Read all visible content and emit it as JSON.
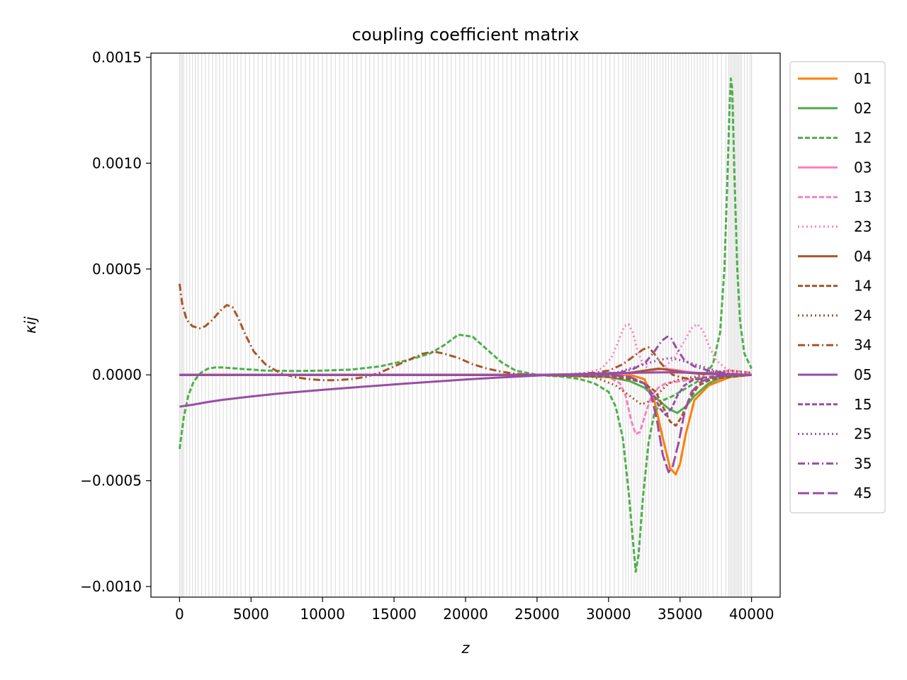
{
  "chart_data": {
    "type": "line",
    "title": "coupling coefficient matrix",
    "xlabel": "z",
    "ylabel": "κij",
    "xlim": [
      -2000,
      42000
    ],
    "ylim": [
      -0.00105,
      0.00152
    ],
    "x_ticks": [
      0,
      5000,
      10000,
      15000,
      20000,
      25000,
      30000,
      35000,
      40000
    ],
    "x_tick_labels": [
      "0",
      "5000",
      "10000",
      "15000",
      "20000",
      "25000",
      "30000",
      "35000",
      "40000"
    ],
    "y_ticks": [
      -0.001,
      -0.0005,
      0,
      0.0005,
      0.001,
      0.0015
    ],
    "y_tick_labels": [
      "−0.0010",
      "−0.0005",
      "0.0000",
      "0.0005",
      "0.0010",
      "0.0015"
    ],
    "legend_position": "outside-right",
    "grid": false,
    "background_vertical_lines": {
      "color": "#bdbdbd",
      "z": [
        0,
        100,
        200,
        300,
        500,
        700,
        900,
        1100,
        1300,
        1550,
        1800,
        2050,
        2300,
        2550,
        2800,
        3050,
        3300,
        3550,
        3800,
        4050,
        4300,
        4600,
        4900,
        5200,
        5500,
        5800,
        6100,
        6400,
        6700,
        7000,
        7300,
        7600,
        7900,
        8200,
        8500,
        8800,
        9100,
        9400,
        9700,
        10000,
        10300,
        10600,
        10900,
        11200,
        11500,
        11800,
        12100,
        12400,
        12700,
        13000,
        13300,
        13600,
        13900,
        14200,
        14500,
        14800,
        15100,
        15400,
        15700,
        16000,
        16300,
        16600,
        16900,
        17200,
        17500,
        17800,
        18100,
        18400,
        18700,
        19000,
        19300,
        19600,
        19900,
        20200,
        20500,
        20800,
        21100,
        21400,
        21700,
        22000,
        22300,
        22600,
        22900,
        23200,
        23500,
        23800,
        24100,
        24400,
        24700,
        25000,
        25300,
        25600,
        25900,
        26200,
        26500,
        26800,
        27100,
        27400,
        27700,
        28000,
        28300,
        28600,
        28900,
        29200,
        29500,
        29800,
        30100,
        30400,
        30700,
        31000,
        31200,
        31400,
        31600,
        31800,
        32000,
        32200,
        32400,
        32600,
        32800,
        33000,
        33200,
        33400,
        33600,
        33800,
        34000,
        34200,
        34400,
        34600,
        34800,
        35000,
        35200,
        35400,
        35600,
        35800,
        36000,
        36200,
        36400,
        36600,
        36800,
        37000,
        37300,
        37600,
        37900,
        38200,
        38400,
        38500,
        38600,
        38700,
        38800,
        38900,
        39000,
        39100,
        39200,
        39300,
        39500,
        39700,
        39900,
        40000
      ]
    },
    "series": [
      {
        "name": "01",
        "color": "#ff7f00",
        "dash": "solid",
        "x": [
          0,
          25000,
          30000,
          31500,
          32500,
          33200,
          33800,
          34300,
          34700,
          35000,
          35400,
          36000,
          37000,
          38500,
          40000
        ],
        "y": [
          0,
          0,
          0,
          0,
          -2e-05,
          -0.00012,
          -0.0003,
          -0.00044,
          -0.00047,
          -0.00042,
          -0.00028,
          -0.00012,
          -5e-05,
          -1e-05,
          0
        ]
      },
      {
        "name": "02",
        "color": "#4daf4a",
        "dash": "solid",
        "x": [
          0,
          25000,
          30000,
          31500,
          32500,
          33500,
          34200,
          34800,
          35400,
          36000,
          37000,
          38000,
          40000
        ],
        "y": [
          0,
          0,
          -1e-05,
          -3e-05,
          -6e-05,
          -0.00012,
          -0.00016,
          -0.00018,
          -0.00015,
          -0.0001,
          -4e-05,
          -1e-05,
          0
        ]
      },
      {
        "name": "12",
        "color": "#4daf4a",
        "dash": "dashed",
        "x": [
          0,
          100,
          300,
          600,
          1000,
          1500,
          2000,
          2500,
          3000,
          4000,
          5000,
          6000,
          8000,
          10000,
          12000,
          14000,
          16000,
          17500,
          18500,
          19500,
          20500,
          21500,
          22500,
          23500,
          25000,
          26000,
          27000,
          28000,
          29000,
          30000,
          30500,
          31000,
          31400,
          31700,
          31900,
          32100,
          32400,
          32800,
          33200,
          33800,
          34500,
          35500,
          36500,
          37300,
          37800,
          38100,
          38300,
          38450,
          38550,
          38650,
          38800,
          39000,
          39200,
          39500,
          40000
        ],
        "y": [
          -0.00035,
          -0.0003,
          -0.0002,
          -0.0001,
          -3e-05,
          1e-05,
          3e-05,
          3.5e-05,
          3.5e-05,
          3e-05,
          2.5e-05,
          2e-05,
          1.8e-05,
          2e-05,
          2.5e-05,
          4e-05,
          7e-05,
          0.0001,
          0.00014,
          0.00019,
          0.00018,
          0.00012,
          6e-05,
          2e-05,
          0,
          -5e-06,
          -1e-05,
          -2e-05,
          -4e-05,
          -8e-05,
          -0.00015,
          -0.0003,
          -0.00055,
          -0.00078,
          -0.00093,
          -0.00085,
          -0.00058,
          -0.00032,
          -0.00018,
          -0.00012,
          -0.0001,
          -6e-05,
          -2e-05,
          5e-05,
          0.0002,
          0.0005,
          0.0009,
          0.00125,
          0.0014,
          0.00135,
          0.00095,
          0.0005,
          0.00025,
          0.0001,
          3e-05
        ]
      },
      {
        "name": "03",
        "color": "#f781bf",
        "dash": "solid",
        "x": [
          0,
          25000,
          30000,
          31000,
          32000,
          33000,
          34000,
          35000,
          36000,
          37000,
          38000,
          40000
        ],
        "y": [
          0,
          0,
          0,
          5e-06,
          1e-05,
          2e-05,
          3e-05,
          2e-05,
          1e-05,
          5e-06,
          2e-06,
          0
        ]
      },
      {
        "name": "13",
        "color": "#f781bf",
        "dash": "dashed",
        "x": [
          0,
          25000,
          29000,
          30000,
          30800,
          31200,
          31600,
          31900,
          32200,
          32600,
          33000,
          33500,
          34000,
          35000,
          36000,
          37000,
          38500,
          40000
        ],
        "y": [
          0,
          0,
          0,
          -1e-05,
          -4e-05,
          -0.0001,
          -0.00022,
          -0.00028,
          -0.00027,
          -0.00018,
          -0.0001,
          -6e-05,
          -4e-05,
          -3e-05,
          -2e-05,
          1e-05,
          2e-05,
          1e-05
        ]
      },
      {
        "name": "23",
        "color": "#f781bf",
        "dash": "dotted",
        "x": [
          0,
          25000,
          27000,
          28500,
          29500,
          30200,
          30700,
          31100,
          31400,
          31700,
          32000,
          32400,
          33000,
          33800,
          34600,
          35300,
          35800,
          36200,
          36600,
          37000,
          37500,
          38200,
          39000,
          40000
        ],
        "y": [
          0,
          0,
          2e-06,
          1e-05,
          3e-05,
          8e-05,
          0.00016,
          0.00023,
          0.00024,
          0.0002,
          0.00012,
          5e-05,
          2e-05,
          3e-05,
          8e-05,
          0.00016,
          0.00022,
          0.00024,
          0.00021,
          0.00014,
          7e-05,
          3e-05,
          1e-05,
          0
        ]
      },
      {
        "name": "04",
        "color": "#a65628",
        "dash": "solid",
        "x": [
          0,
          25000,
          30000,
          31500,
          32500,
          33500,
          34000,
          34500,
          35500,
          36500,
          38000,
          40000
        ],
        "y": [
          0,
          0,
          5e-06,
          1e-05,
          2e-05,
          3e-05,
          2.5e-05,
          2e-05,
          1e-05,
          5e-06,
          2e-06,
          0
        ]
      },
      {
        "name": "14",
        "color": "#a65628",
        "dash": "dashed",
        "x": [
          0,
          25000,
          30000,
          31500,
          32500,
          33300,
          33800,
          34300,
          34700,
          35100,
          35600,
          36300,
          37200,
          38500,
          40000
        ],
        "y": [
          0,
          0,
          -1e-05,
          -2e-05,
          -4e-05,
          -8e-05,
          -0.00015,
          -0.00022,
          -0.00024,
          -0.0002,
          -0.00012,
          -5e-05,
          -2e-05,
          -1e-05,
          0
        ]
      },
      {
        "name": "24",
        "color": "#a65628",
        "dash": "dotted",
        "x": [
          0,
          25000,
          29000,
          30500,
          31500,
          32300,
          33000,
          33600,
          34200,
          35000,
          36000,
          37000,
          38500,
          40000
        ],
        "y": [
          0,
          0,
          -1e-05,
          -5e-05,
          -0.0001,
          -0.00014,
          -0.00012,
          -8e-05,
          -4e-05,
          -2e-05,
          -1e-05,
          1e-05,
          2e-05,
          1e-05
        ]
      },
      {
        "name": "34",
        "color": "#a65628",
        "dash": "dashdot",
        "x": [
          0,
          200,
          500,
          900,
          1400,
          1800,
          2300,
          2800,
          3300,
          3700,
          4100,
          4600,
          5200,
          6000,
          7000,
          8000,
          9000,
          10000,
          11000,
          12000,
          13000,
          14000,
          15000,
          16000,
          17000,
          17800,
          18500,
          19500,
          20500,
          21500,
          22500,
          23500,
          25000,
          26000,
          27000,
          28000,
          29000,
          30000,
          31000,
          31800,
          32400,
          32800,
          33200,
          33600,
          34000,
          34500,
          35000,
          35600,
          36500,
          37500,
          38500,
          40000
        ],
        "y": [
          0.00043,
          0.00033,
          0.00026,
          0.00023,
          0.00022,
          0.00023,
          0.00026,
          0.0003,
          0.00033,
          0.00032,
          0.00027,
          0.00019,
          0.00011,
          5e-05,
          1e-05,
          -1e-05,
          -2e-05,
          -2.5e-05,
          -2.5e-05,
          -2e-05,
          -1e-05,
          1e-05,
          4e-05,
          7e-05,
          0.0001,
          0.00011,
          0.0001,
          8e-05,
          5e-05,
          3e-05,
          1.5e-05,
          5e-06,
          0,
          -2e-06,
          0,
          5e-06,
          1e-05,
          2e-05,
          5e-05,
          9e-05,
          0.00012,
          0.00013,
          0.0001,
          6e-05,
          3e-05,
          0,
          -1e-05,
          -2e-05,
          -2e-05,
          -1e-05,
          0,
          0
        ]
      },
      {
        "name": "05",
        "color": "#984ea3",
        "dash": "solid",
        "x": [
          0,
          1000,
          2000,
          3000,
          4000,
          5000,
          6000,
          7000,
          8000,
          10000,
          12000,
          14000,
          16000,
          18000,
          20000,
          22000,
          24000,
          26000,
          28000,
          30000,
          32000,
          34000,
          36000,
          38000,
          40000
        ],
        "y": [
          -0.00015,
          -0.00014,
          -0.000128,
          -0.000118,
          -0.00011,
          -0.000102,
          -9.5e-05,
          -8.8e-05,
          -8.2e-05,
          -7.1e-05,
          -6e-05,
          -5e-05,
          -4e-05,
          -3.1e-05,
          -2.2e-05,
          -1.4e-05,
          -7e-06,
          0,
          4e-06,
          8e-06,
          1e-05,
          1.2e-05,
          1e-05,
          5e-06,
          0
        ]
      },
      {
        "name": "15",
        "color": "#984ea3",
        "dash": "dashed",
        "x": [
          0,
          25000,
          30000,
          31500,
          32500,
          33200,
          33600,
          34000,
          34400,
          34800,
          35300,
          36000,
          37000,
          38500,
          40000
        ],
        "y": [
          0,
          0,
          0,
          -1e-05,
          -4e-05,
          -0.0001,
          -0.00016,
          -0.00019,
          -0.00016,
          -0.0001,
          -5e-05,
          -2e-05,
          -1e-05,
          0,
          0
        ]
      },
      {
        "name": "25",
        "color": "#984ea3",
        "dash": "dotted",
        "x": [
          0,
          25000,
          29000,
          30500,
          31500,
          32500,
          33500,
          34300,
          35000,
          36000,
          37000,
          38000,
          39000,
          40000
        ],
        "y": [
          0,
          0,
          5e-06,
          1e-05,
          3e-05,
          5e-05,
          7e-05,
          8e-05,
          7e-05,
          5e-05,
          3e-05,
          1e-05,
          5e-06,
          0
        ]
      },
      {
        "name": "35",
        "color": "#984ea3",
        "dash": "dashdot",
        "x": [
          0,
          25000,
          29500,
          30800,
          31800,
          32600,
          33200,
          33700,
          34100,
          34400,
          34800,
          35300,
          36000,
          37000,
          38500,
          40000
        ],
        "y": [
          0,
          0,
          5e-06,
          1e-05,
          3e-05,
          6e-05,
          0.00011,
          0.00016,
          0.00018,
          0.00017,
          0.00012,
          7e-05,
          4e-05,
          2e-05,
          5e-06,
          0
        ]
      },
      {
        "name": "45",
        "color": "#984ea3",
        "dash": "longdash",
        "x": [
          0,
          25000,
          30000,
          31500,
          32500,
          33000,
          33400,
          33800,
          34200,
          34500,
          34900,
          35300,
          35800,
          36500,
          37500,
          38500,
          40000
        ],
        "y": [
          0,
          0,
          0,
          -1e-05,
          -4e-05,
          -0.0001,
          -0.00022,
          -0.00038,
          -0.00046,
          -0.00043,
          -0.00032,
          -0.00018,
          -8e-05,
          -3e-05,
          -1e-05,
          0,
          0
        ]
      }
    ]
  }
}
